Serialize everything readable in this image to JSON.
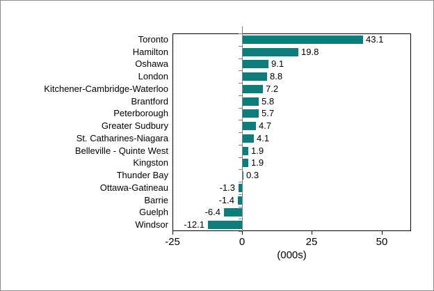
{
  "window": {
    "background": "#ffffff",
    "frame_border_color": "#8a8a8a"
  },
  "chart_data": {
    "type": "bar",
    "orientation": "horizontal",
    "title": "",
    "xlabel": "(000s)",
    "ylabel": "",
    "categories": [
      "Toronto",
      "Hamilton",
      "Oshawa",
      "London",
      "Kitchener-Cambridge-Waterloo",
      "Brantford",
      "Peterborough",
      "Greater Sudbury",
      "St. Catharines-Niagara",
      "Belleville - Quinte West",
      "Kingston",
      "Thunder Bay",
      "Ottawa-Gatineau",
      "Barrie",
      "Guelph",
      "Windsor"
    ],
    "values": [
      43.1,
      19.8,
      9.1,
      8.8,
      7.2,
      5.8,
      5.7,
      4.7,
      4.1,
      1.9,
      1.9,
      0.3,
      -1.3,
      -1.4,
      -6.4,
      -12.1
    ],
    "value_labels": [
      "43.1",
      "19.8",
      "9.1",
      "8.8",
      "7.2",
      "5.8",
      "5.7",
      "4.7",
      "4.1",
      "1.9",
      "1.9",
      "0.3",
      "-1.3",
      "-1.4",
      "-6.4",
      "-12.1"
    ],
    "xticks": [
      -25,
      0,
      25,
      50
    ],
    "xtick_labels": [
      "-25",
      "0",
      "25",
      "50"
    ],
    "xlim": [
      -25,
      60.4
    ],
    "grid": false,
    "legend": "none",
    "colors": {
      "bar": "#0e7c7b",
      "axis": "#000000",
      "zero_line": "#808080",
      "text": "#000000"
    }
  }
}
